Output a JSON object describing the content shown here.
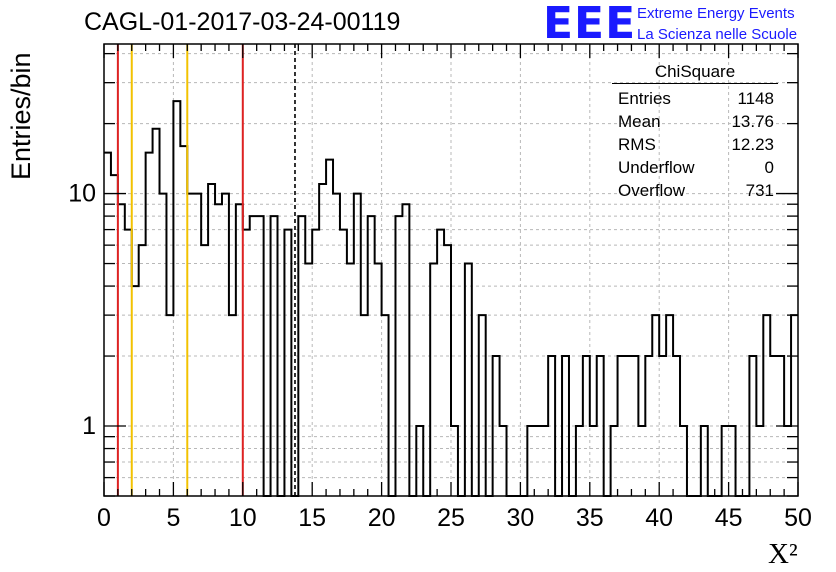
{
  "header": {
    "title": "CAGL-01-2017-03-24-00119",
    "logo_mark": "EEE",
    "logo_line1": "Extreme Energy Events",
    "logo_line2": "La Scienza nelle Scuole"
  },
  "stats_box": {
    "title": "ChiSquare",
    "rows": [
      {
        "label": "Entries",
        "value": "1148"
      },
      {
        "label": "Mean",
        "value": "13.76"
      },
      {
        "label": "RMS",
        "value": "12.23"
      },
      {
        "label": "Underflow",
        "value": "0"
      },
      {
        "label": "Overflow",
        "value": "731"
      }
    ]
  },
  "colors": {
    "red_line": "#dd2222",
    "orange_line": "#f2c200",
    "hist": "#000000",
    "grid": "#b8b8b8"
  },
  "chart_data": {
    "type": "histogram",
    "title": "CAGL-01-2017-03-24-00119",
    "xlabel": "X²",
    "ylabel": "Entries/bin",
    "xlim": [
      0,
      50
    ],
    "ylim": [
      0.5,
      44
    ],
    "y_scale": "log",
    "grid": true,
    "bin_width": 0.5,
    "x_ticks": [
      "0",
      "5",
      "10",
      "15",
      "20",
      "25",
      "30",
      "35",
      "40",
      "45",
      "50"
    ],
    "y_ticks": [
      {
        "value": 1,
        "label": "1"
      },
      {
        "value": 10,
        "label": "10"
      }
    ],
    "values": [
      15,
      12,
      9,
      7,
      4,
      6,
      15,
      19,
      10,
      3,
      25,
      16,
      10,
      10,
      6,
      11,
      9,
      10,
      3,
      9,
      7,
      8,
      8,
      0,
      8,
      0,
      7,
      0,
      8,
      5,
      7,
      11,
      14,
      10,
      7,
      5,
      10,
      3,
      8,
      5,
      3,
      0,
      8,
      9,
      0,
      1,
      0,
      5,
      7,
      6,
      1,
      0,
      5,
      0,
      3,
      0,
      2,
      1,
      0,
      0,
      0,
      1,
      1,
      1,
      2,
      0,
      2,
      0,
      1,
      2,
      1,
      2,
      0,
      1,
      2,
      2,
      2,
      1,
      2,
      3,
      2,
      3,
      2,
      1,
      0,
      0,
      1,
      0,
      0,
      1,
      1,
      0,
      0,
      2,
      1,
      3,
      2,
      2,
      1,
      3
    ],
    "vertical_lines": [
      {
        "x": 1,
        "color": "red"
      },
      {
        "x": 2,
        "color": "orange"
      },
      {
        "x": 6,
        "color": "orange"
      },
      {
        "x": 10,
        "color": "red"
      },
      {
        "x": 13.76,
        "color": "black",
        "style": "dashed"
      }
    ]
  }
}
